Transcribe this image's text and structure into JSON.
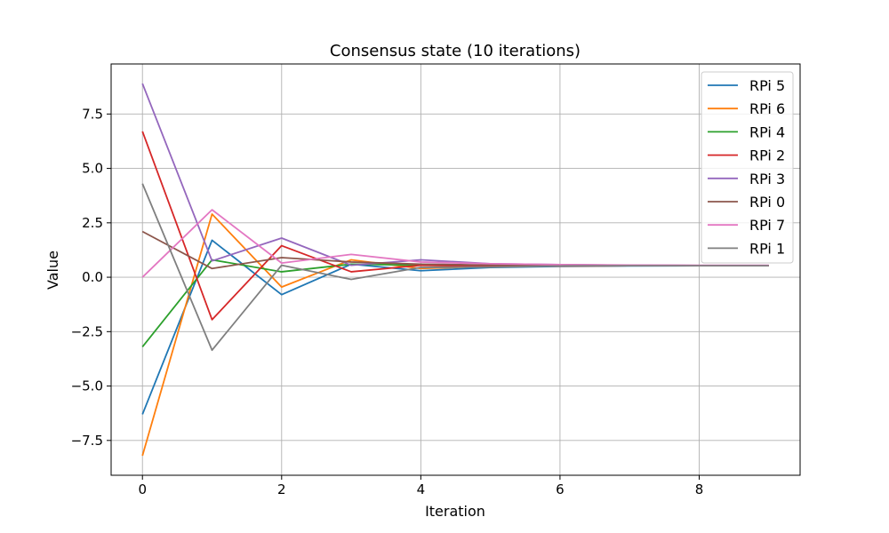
{
  "chart_data": {
    "type": "line",
    "title": "Consensus state (10 iterations)",
    "xlabel": "Iteration",
    "ylabel": "Value",
    "xlim": [
      -0.45,
      9.45
    ],
    "ylim": [
      -9.1,
      9.8
    ],
    "x_ticks": [
      0,
      2,
      4,
      6,
      8
    ],
    "x_tick_labels": [
      "0",
      "2",
      "4",
      "6",
      "8"
    ],
    "y_ticks": [
      -7.5,
      -5.0,
      -2.5,
      0.0,
      2.5,
      5.0,
      7.5
    ],
    "y_tick_labels": [
      "−7.5",
      "−5.0",
      "−2.5",
      "0.0",
      "2.5",
      "5.0",
      "7.5"
    ],
    "grid": true,
    "legend_position": "top-right",
    "x": [
      0,
      1,
      2,
      3,
      4,
      5,
      6,
      7,
      8,
      9
    ],
    "series": [
      {
        "name": "RPi 5",
        "color": "#1f77b4",
        "values": [
          -6.3,
          1.7,
          -0.8,
          0.6,
          0.3,
          0.45,
          0.5,
          0.52,
          0.53,
          0.53
        ]
      },
      {
        "name": "RPi 6",
        "color": "#ff7f0e",
        "values": [
          -8.2,
          2.9,
          -0.45,
          0.8,
          0.4,
          0.5,
          0.52,
          0.53,
          0.53,
          0.53
        ]
      },
      {
        "name": "RPi 4",
        "color": "#2ca02c",
        "values": [
          -3.2,
          0.8,
          0.25,
          0.6,
          0.55,
          0.52,
          0.53,
          0.53,
          0.53,
          0.53
        ]
      },
      {
        "name": "RPi 2",
        "color": "#d62728",
        "values": [
          6.7,
          -1.95,
          1.45,
          0.25,
          0.55,
          0.5,
          0.52,
          0.53,
          0.53,
          0.53
        ]
      },
      {
        "name": "RPi 3",
        "color": "#9467bd",
        "values": [
          8.9,
          0.75,
          1.8,
          0.55,
          0.8,
          0.62,
          0.58,
          0.55,
          0.54,
          0.54
        ]
      },
      {
        "name": "RPi 0",
        "color": "#8c564b",
        "values": [
          2.1,
          0.4,
          0.9,
          0.7,
          0.6,
          0.56,
          0.55,
          0.54,
          0.54,
          0.54
        ]
      },
      {
        "name": "RPi 7",
        "color": "#e377c2",
        "values": [
          0.0,
          3.1,
          0.65,
          1.05,
          0.7,
          0.62,
          0.58,
          0.56,
          0.55,
          0.55
        ]
      },
      {
        "name": "RPi 1",
        "color": "#7f7f7f",
        "values": [
          4.3,
          -3.35,
          0.55,
          -0.1,
          0.45,
          0.47,
          0.52,
          0.53,
          0.53,
          0.53
        ]
      }
    ]
  }
}
